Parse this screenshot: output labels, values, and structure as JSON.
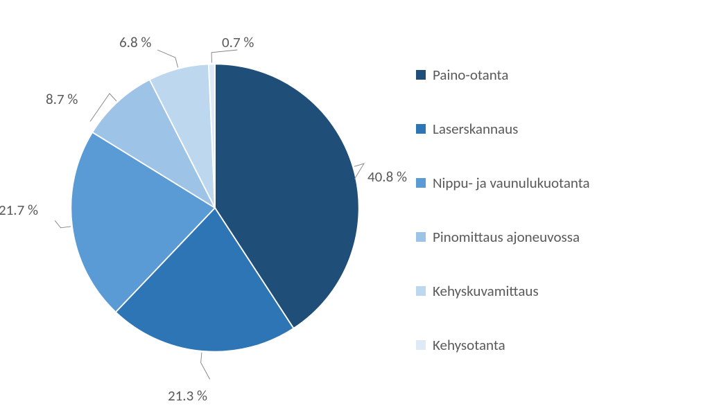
{
  "chart": {
    "type": "pie",
    "background_color": "#ffffff",
    "label_fontsize": 21,
    "label_color": "#595959",
    "slice_stroke": "#ffffff",
    "slice_stroke_width": 2,
    "leader_color": "#808080",
    "slices": [
      {
        "name": "Paino-otanta",
        "value": 40.8,
        "label": "40.8 %",
        "color": "#1f4e79"
      },
      {
        "name": "Laserskannaus",
        "value": 21.3,
        "label": "21.3 %",
        "color": "#2e75b6"
      },
      {
        "name": "Nippu- ja vaunulukuotanta",
        "value": 21.7,
        "label": "21.7 %",
        "color": "#5b9bd5"
      },
      {
        "name": "Pinomittaus ajoneuvossa",
        "value": 8.7,
        "label": "8.7 %",
        "color": "#9dc3e6"
      },
      {
        "name": "Kehyskuvamittaus",
        "value": 6.8,
        "label": "6.8 %",
        "color": "#bdd7ee"
      },
      {
        "name": "Kehysotanta",
        "value": 0.7,
        "label": "0.7 %",
        "color": "#deebf7"
      }
    ],
    "legend": {
      "swatch_size": 14,
      "item_gap": 52
    }
  }
}
